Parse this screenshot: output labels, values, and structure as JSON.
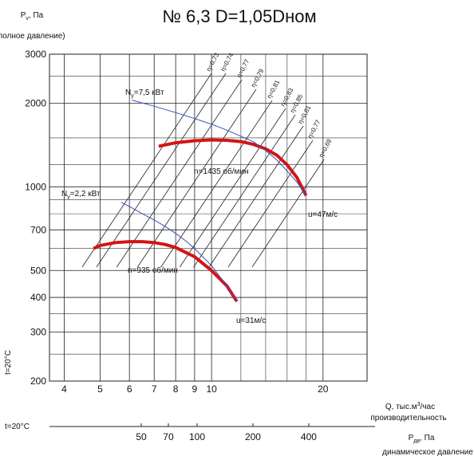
{
  "chart_data": {
    "type": "line",
    "title": "№ 6,3 D=1,05Dном",
    "y_label": [
      "P",
      "v",
      ", Па"
    ],
    "y_label2": "(полное давление)",
    "x_label": [
      "Q, тыс.м",
      "3",
      "/час"
    ],
    "x_label2": "производительность",
    "pd_label": [
      "P",
      "дв",
      ", Па"
    ],
    "pd_label2": "динамическое давление",
    "temp_labels": [
      "t=20°C",
      "t=20°C"
    ],
    "log_x": true,
    "log_y": true,
    "grid": true,
    "xlim": [
      3.65,
      26.3
    ],
    "xticks": [
      4,
      5,
      6,
      7,
      8,
      9,
      10,
      20
    ],
    "xgrid": [
      12,
      14,
      16,
      18
    ],
    "ylim": [
      200,
      3000
    ],
    "yticks": [
      200,
      300,
      400,
      500,
      700,
      1000,
      2000,
      3000
    ],
    "ygrid": [
      250,
      350,
      600,
      800,
      900,
      1200,
      1500,
      2500
    ],
    "pdlim": [
      16,
      825
    ],
    "pdticks": [
      50,
      70,
      100,
      200,
      400
    ],
    "series": [
      {
        "name": "n=1435 об/мин",
        "color": "#d41414",
        "x": [
          7.2,
          8,
          9,
          10,
          11,
          12,
          13,
          14,
          15,
          16,
          17,
          18
        ],
        "values": [
          1400,
          1440,
          1465,
          1475,
          1470,
          1455,
          1420,
          1370,
          1300,
          1200,
          1080,
          930
        ]
      },
      {
        "name": "n=935 об/мин",
        "color": "#d41414",
        "x": [
          4.8,
          5,
          5.5,
          6,
          6.5,
          7,
          7.5,
          8,
          9,
          10,
          11,
          11.7
        ],
        "values": [
          600,
          615,
          630,
          635,
          635,
          630,
          620,
          605,
          560,
          500,
          440,
          387
        ]
      },
      {
        "name": "7,5 кВт",
        "color": "#3a4fc0",
        "x": [
          6.1,
          7,
          8,
          9,
          10,
          11,
          12,
          13,
          14,
          15,
          16,
          17,
          18
        ],
        "values": [
          2050,
          1950,
          1850,
          1760,
          1680,
          1600,
          1520,
          1450,
          1350,
          1250,
          1140,
          1040,
          930
        ]
      },
      {
        "name": "2,2 кВт",
        "color": "#3a4fc0",
        "x": [
          5.7,
          6,
          6.5,
          7,
          7.5,
          8,
          8.5,
          9,
          10,
          11,
          11.7
        ],
        "values": [
          880,
          850,
          800,
          760,
          720,
          680,
          640,
          600,
          520,
          440,
          387
        ]
      }
    ],
    "power_labels": [
      [
        "N",
        "y",
        "=7,5 кВт"
      ],
      [
        "N",
        "y",
        "=2,2 кВт"
      ]
    ],
    "annotations": [
      "n=1435 об/мин",
      "n=935 об/мин",
      "u=47м/с",
      "u=31м/с"
    ],
    "efficiency_labels": [
      "η=0,73",
      "η=0,74",
      "η=0,77",
      "η=0,79",
      "η=0,81",
      "η=0,83",
      "η=0,85",
      "η=0,81",
      "η=0,77",
      "η=0,69"
    ]
  }
}
